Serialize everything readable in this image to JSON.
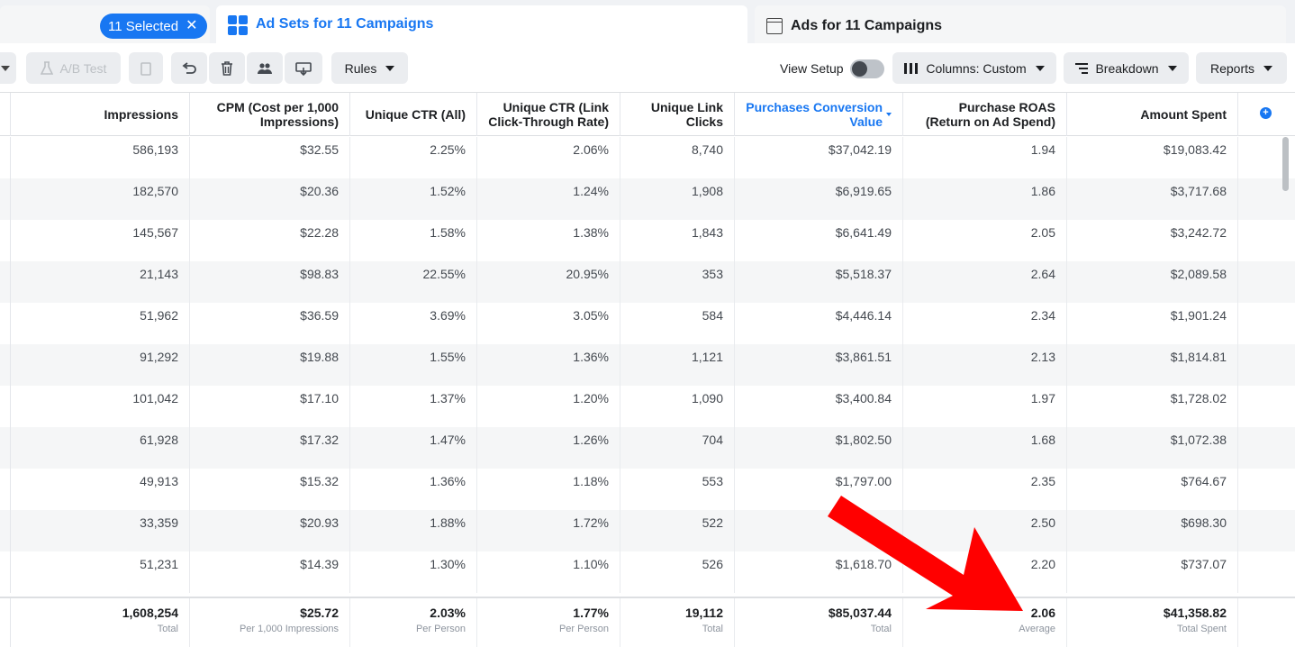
{
  "tabs": {
    "selected_count": "11 Selected",
    "adsets_label": "Ad Sets for 11 Campaigns",
    "ads_label": "Ads for 11 Campaigns"
  },
  "toolbar": {
    "ab_test": "A/B Test",
    "rules": "Rules",
    "view_setup": "View Setup",
    "columns": "Columns: Custom",
    "breakdown": "Breakdown",
    "reports": "Reports"
  },
  "columns": [
    {
      "key": "impressions",
      "label": "Impressions"
    },
    {
      "key": "cpm",
      "label": "CPM (Cost per 1,000 Impressions)"
    },
    {
      "key": "ctr_all",
      "label": "Unique CTR (All)"
    },
    {
      "key": "ctr_link",
      "label": "Unique CTR (Link Click-Through Rate)"
    },
    {
      "key": "link_clicks",
      "label": "Unique Link Clicks"
    },
    {
      "key": "conv_value",
      "label": "Purchases Conversion Value"
    },
    {
      "key": "roas",
      "label": "Purchase ROAS (Return on Ad Spend)"
    },
    {
      "key": "spent",
      "label": "Amount Spent"
    }
  ],
  "rows": [
    [
      "586,193",
      "$32.55",
      "2.25%",
      "2.06%",
      "8,740",
      "$37,042.19",
      "1.94",
      "$19,083.42"
    ],
    [
      "182,570",
      "$20.36",
      "1.52%",
      "1.24%",
      "1,908",
      "$6,919.65",
      "1.86",
      "$3,717.68"
    ],
    [
      "145,567",
      "$22.28",
      "1.58%",
      "1.38%",
      "1,843",
      "$6,641.49",
      "2.05",
      "$3,242.72"
    ],
    [
      "21,143",
      "$98.83",
      "22.55%",
      "20.95%",
      "353",
      "$5,518.37",
      "2.64",
      "$2,089.58"
    ],
    [
      "51,962",
      "$36.59",
      "3.69%",
      "3.05%",
      "584",
      "$4,446.14",
      "2.34",
      "$1,901.24"
    ],
    [
      "91,292",
      "$19.88",
      "1.55%",
      "1.36%",
      "1,121",
      "$3,861.51",
      "2.13",
      "$1,814.81"
    ],
    [
      "101,042",
      "$17.10",
      "1.37%",
      "1.20%",
      "1,090",
      "$3,400.84",
      "1.97",
      "$1,728.02"
    ],
    [
      "61,928",
      "$17.32",
      "1.47%",
      "1.26%",
      "704",
      "$1,802.50",
      "1.68",
      "$1,072.38"
    ],
    [
      "49,913",
      "$15.32",
      "1.36%",
      "1.18%",
      "553",
      "$1,797.00",
      "2.35",
      "$764.67"
    ],
    [
      "33,359",
      "$20.93",
      "1.88%",
      "1.72%",
      "522",
      "",
      "2.50",
      "$698.30"
    ],
    [
      "51,231",
      "$14.39",
      "1.30%",
      "1.10%",
      "526",
      "$1,618.70",
      "2.20",
      "$737.07"
    ]
  ],
  "totals": [
    {
      "value": "1,608,254",
      "label": "Total"
    },
    {
      "value": "$25.72",
      "label": "Per 1,000 Impressions"
    },
    {
      "value": "2.03%",
      "label": "Per Person"
    },
    {
      "value": "1.77%",
      "label": "Per Person"
    },
    {
      "value": "19,112",
      "label": "Total"
    },
    {
      "value": "$85,037.44",
      "label": "Total"
    },
    {
      "value": "2.06",
      "label": "Average"
    },
    {
      "value": "$41,358.82",
      "label": "Total Spent"
    }
  ],
  "colors": {
    "accent": "#1877f2",
    "annotation_arrow": "#ff0000"
  }
}
